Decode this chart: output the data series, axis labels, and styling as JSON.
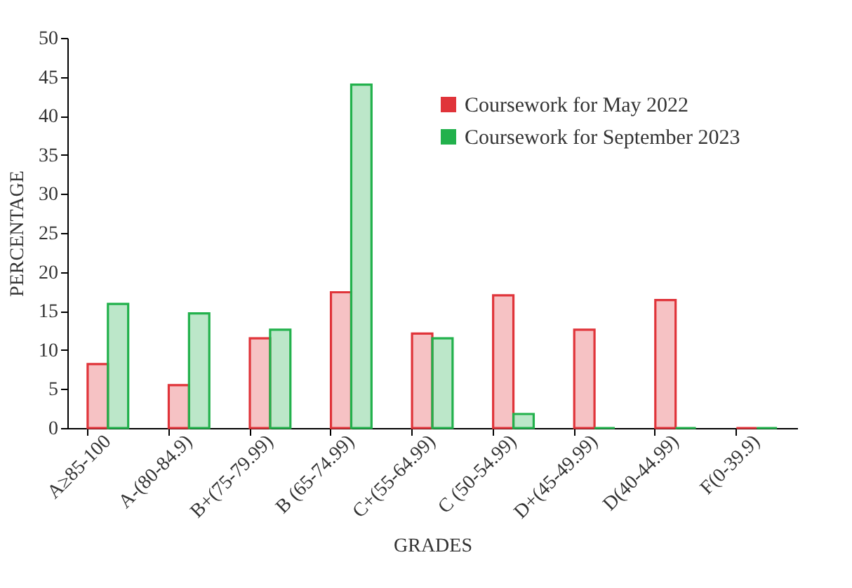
{
  "chart_data": {
    "type": "bar",
    "xlabel": "GRADES",
    "ylabel": "PERCENTAGE",
    "categories": [
      "A≥85-100",
      "A-(80-84.9)",
      "B+(75-79.99)",
      "B (65-74.99)",
      "C+(55-64.99)",
      "C (50-54.99)",
      "D+(45-49.99)",
      "D(40-44.99)",
      "F(0-39.9)"
    ],
    "series": [
      {
        "name": "Coursework for May 2022",
        "color": "#e0343a",
        "values": [
          8.2,
          5.5,
          11.5,
          17.4,
          12.1,
          17.0,
          12.6,
          16.4,
          0
        ]
      },
      {
        "name": "Coursework for September 2023",
        "color": "#22b14c",
        "values": [
          15.9,
          14.7,
          12.6,
          44.0,
          11.5,
          1.8,
          0,
          0,
          0
        ]
      }
    ],
    "ylim": [
      0,
      50
    ],
    "yticks": [
      0,
      5,
      10,
      15,
      20,
      25,
      30,
      35,
      40,
      45,
      50
    ],
    "grid": false,
    "legend": "top right"
  }
}
